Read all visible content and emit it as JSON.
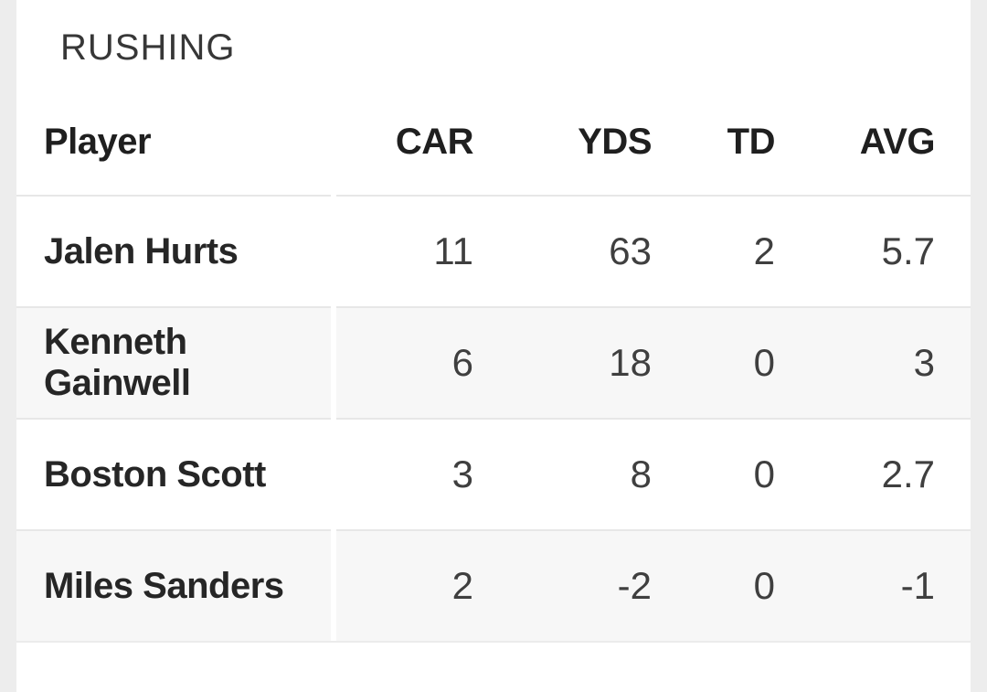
{
  "section": {
    "title": "RUSHING"
  },
  "table": {
    "columns": {
      "player": "Player",
      "car": "CAR",
      "yds": "YDS",
      "td": "TD",
      "avg": "AVG"
    },
    "rows": [
      {
        "player": "Jalen Hurts",
        "car": "11",
        "yds": "63",
        "td": "2",
        "avg": "5.7"
      },
      {
        "player": "Kenneth Gainwell",
        "car": "6",
        "yds": "18",
        "td": "0",
        "avg": "3"
      },
      {
        "player": "Boston Scott",
        "car": "3",
        "yds": "8",
        "td": "0",
        "avg": "2.7"
      },
      {
        "player": "Miles Sanders",
        "car": "2",
        "yds": "-2",
        "td": "0",
        "avg": "-1"
      }
    ]
  },
  "colors": {
    "page_margin_bg": "#ededed",
    "card_bg": "#ffffff",
    "row_alt_bg": "#f7f7f7",
    "divider": "#e7e7e7",
    "text_heading": "#1f1f1f",
    "text_player": "#262626",
    "text_stat": "#3f3f3f",
    "text_title": "#373737"
  }
}
